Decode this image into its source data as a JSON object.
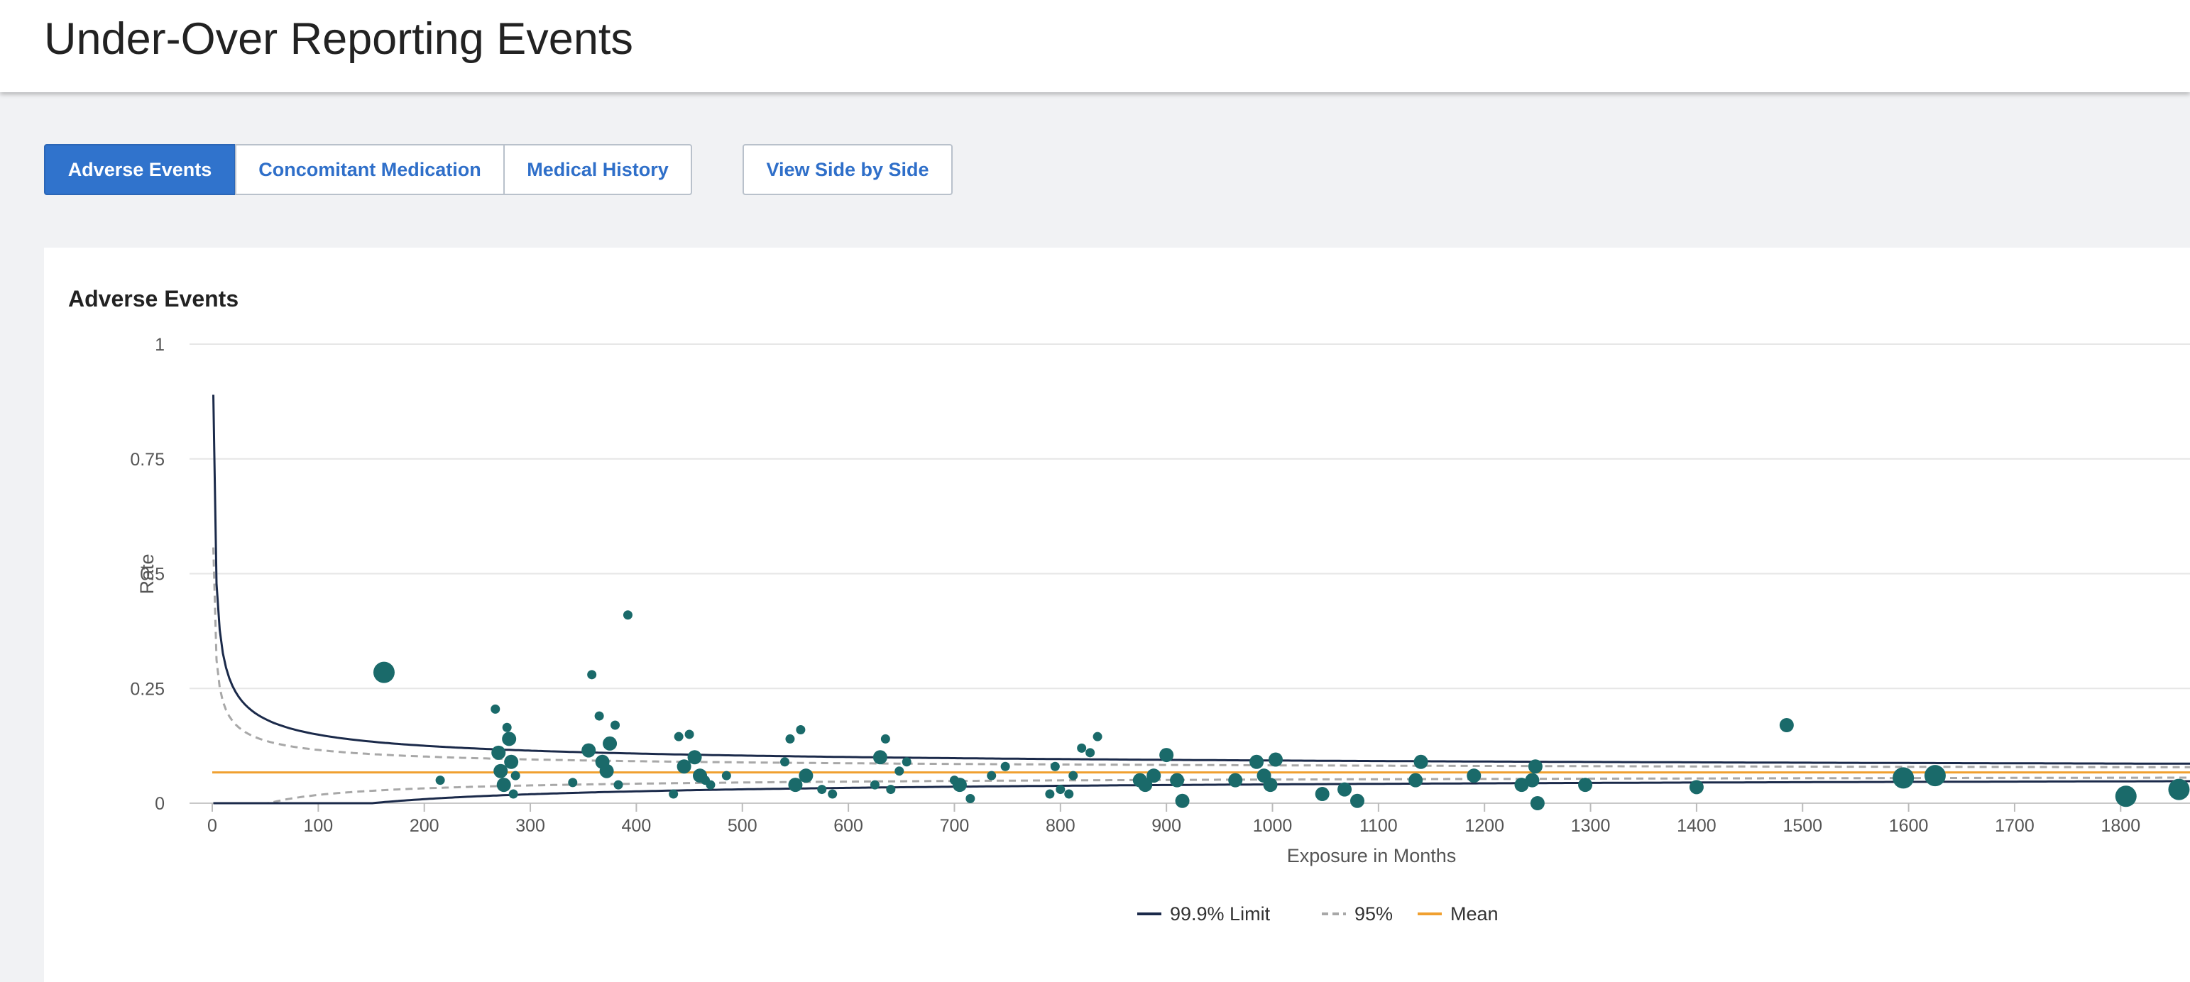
{
  "header": {
    "title": "Under-Over Reporting Events"
  },
  "tabs": [
    {
      "label": "Adverse Events",
      "active": true
    },
    {
      "label": "Concomitant Medication",
      "active": false
    },
    {
      "label": "Medical History",
      "active": false
    }
  ],
  "side_button": {
    "label": "View Side by Side"
  },
  "panel": {
    "title": "Adverse Events"
  },
  "colors": {
    "limit999": "#1b2a4a",
    "limit95": "#a8a8a8",
    "mean": "#f0a030",
    "points": "#1a6a6a",
    "grid": "#e6e6e6",
    "active_tab": "#3073cc"
  },
  "chart_data": {
    "type": "scatter",
    "xlabel": "Exposure in Months",
    "ylabel": "Rate",
    "xlim": [
      0,
      1870
    ],
    "ylim": [
      0,
      1
    ],
    "x_ticks": [
      0,
      100,
      200,
      300,
      400,
      500,
      600,
      700,
      800,
      900,
      1000,
      1100,
      1200,
      1300,
      1400,
      1500,
      1600,
      1700,
      1800
    ],
    "y_ticks": [
      0,
      0.25,
      0.5,
      0.75,
      1
    ],
    "y_tick_labels": [
      "0",
      "0.25",
      "0.5",
      "0.75",
      "1"
    ],
    "mean": 0.067,
    "legend": {
      "placement": "bottom-center",
      "items": [
        {
          "label": "99.9% Limit",
          "style": "solid"
        },
        {
          "label": "95%",
          "style": "dashed"
        },
        {
          "label": "Mean",
          "style": "solid"
        }
      ]
    },
    "points": [
      [
        162,
        0.285,
        3
      ],
      [
        215,
        0.05,
        1
      ],
      [
        267,
        0.205,
        1
      ],
      [
        270,
        0.11,
        2
      ],
      [
        272,
        0.07,
        2
      ],
      [
        275,
        0.04,
        2
      ],
      [
        278,
        0.165,
        1
      ],
      [
        280,
        0.14,
        2
      ],
      [
        282,
        0.09,
        2
      ],
      [
        284,
        0.02,
        1
      ],
      [
        286,
        0.06,
        1
      ],
      [
        340,
        0.045,
        1
      ],
      [
        355,
        0.115,
        2
      ],
      [
        358,
        0.28,
        1
      ],
      [
        365,
        0.19,
        1
      ],
      [
        368,
        0.09,
        2
      ],
      [
        372,
        0.07,
        2
      ],
      [
        375,
        0.13,
        2
      ],
      [
        380,
        0.17,
        1
      ],
      [
        383,
        0.04,
        1
      ],
      [
        392,
        0.41,
        1
      ],
      [
        435,
        0.02,
        1
      ],
      [
        440,
        0.145,
        1
      ],
      [
        445,
        0.08,
        2
      ],
      [
        450,
        0.15,
        1
      ],
      [
        455,
        0.1,
        2
      ],
      [
        460,
        0.06,
        2
      ],
      [
        465,
        0.05,
        1
      ],
      [
        470,
        0.04,
        1
      ],
      [
        485,
        0.06,
        1
      ],
      [
        540,
        0.09,
        1
      ],
      [
        545,
        0.14,
        1
      ],
      [
        550,
        0.04,
        2
      ],
      [
        555,
        0.16,
        1
      ],
      [
        560,
        0.06,
        2
      ],
      [
        575,
        0.03,
        1
      ],
      [
        585,
        0.02,
        1
      ],
      [
        625,
        0.04,
        1
      ],
      [
        630,
        0.1,
        2
      ],
      [
        635,
        0.14,
        1
      ],
      [
        640,
        0.03,
        1
      ],
      [
        648,
        0.07,
        1
      ],
      [
        655,
        0.09,
        1
      ],
      [
        700,
        0.05,
        1
      ],
      [
        705,
        0.04,
        2
      ],
      [
        715,
        0.01,
        1
      ],
      [
        735,
        0.06,
        1
      ],
      [
        748,
        0.08,
        1
      ],
      [
        790,
        0.02,
        1
      ],
      [
        795,
        0.08,
        1
      ],
      [
        800,
        0.03,
        1
      ],
      [
        808,
        0.02,
        1
      ],
      [
        812,
        0.06,
        1
      ],
      [
        820,
        0.12,
        1
      ],
      [
        828,
        0.11,
        1
      ],
      [
        835,
        0.145,
        1
      ],
      [
        875,
        0.05,
        2
      ],
      [
        880,
        0.04,
        2
      ],
      [
        888,
        0.06,
        2
      ],
      [
        900,
        0.105,
        2
      ],
      [
        910,
        0.05,
        2
      ],
      [
        915,
        0.005,
        2
      ],
      [
        965,
        0.05,
        2
      ],
      [
        985,
        0.09,
        2
      ],
      [
        992,
        0.06,
        2
      ],
      [
        998,
        0.04,
        2
      ],
      [
        1003,
        0.095,
        2
      ],
      [
        1047,
        0.02,
        2
      ],
      [
        1068,
        0.03,
        2
      ],
      [
        1080,
        0.005,
        2
      ],
      [
        1135,
        0.05,
        2
      ],
      [
        1140,
        0.09,
        2
      ],
      [
        1190,
        0.06,
        2
      ],
      [
        1235,
        0.04,
        2
      ],
      [
        1245,
        0.05,
        2
      ],
      [
        1248,
        0.08,
        2
      ],
      [
        1250,
        0.0,
        2
      ],
      [
        1295,
        0.04,
        2
      ],
      [
        1400,
        0.035,
        2
      ],
      [
        1485,
        0.17,
        2
      ],
      [
        1595,
        0.055,
        3
      ],
      [
        1625,
        0.06,
        3
      ],
      [
        1805,
        0.015,
        3
      ],
      [
        1855,
        0.03,
        3
      ]
    ]
  }
}
